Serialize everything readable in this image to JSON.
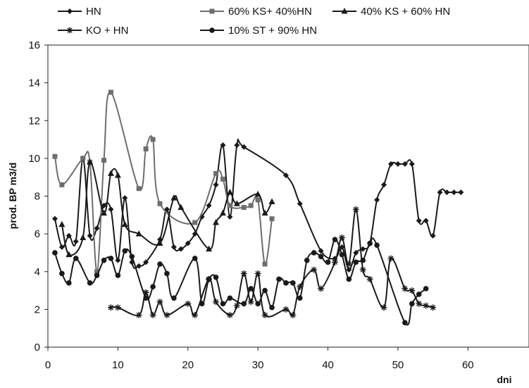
{
  "chart_data": {
    "type": "line",
    "xlabel": "dni",
    "ylabel": "prod. BP m3/d",
    "xlim": [
      0,
      65
    ],
    "ylim": [
      0,
      16
    ],
    "xticks": [
      0,
      10,
      20,
      30,
      40,
      50,
      60
    ],
    "yticks": [
      0,
      2,
      4,
      6,
      8,
      10,
      12,
      14,
      16
    ],
    "legend_position": "top",
    "grid": false,
    "series": [
      {
        "name": "HN",
        "marker": "diamond",
        "color": "#1a1a1a",
        "points": [
          [
            1,
            6.8
          ],
          [
            2,
            5.3
          ],
          [
            3,
            5.9
          ],
          [
            4,
            5.6
          ],
          [
            5,
            10.0
          ],
          [
            6,
            5.9
          ],
          [
            7,
            6.3
          ],
          [
            8,
            7.5
          ],
          [
            9,
            7.3
          ],
          [
            10,
            4.6
          ],
          [
            11,
            7.9
          ],
          [
            12,
            4.5
          ],
          [
            13,
            4.3
          ],
          [
            14,
            4.5
          ],
          [
            16,
            5.7
          ],
          [
            17,
            7.3
          ],
          [
            18,
            5.3
          ],
          [
            19,
            5.2
          ],
          [
            20,
            5.5
          ],
          [
            21,
            6.0
          ],
          [
            22,
            6.9
          ],
          [
            23,
            7.5
          ],
          [
            24,
            8.6
          ],
          [
            25,
            10.7
          ],
          [
            26,
            6.9
          ],
          [
            27,
            10.7
          ],
          [
            28,
            10.6
          ],
          [
            34,
            9.1
          ],
          [
            36,
            7.6
          ],
          [
            39,
            5.1
          ],
          [
            41,
            4.7
          ],
          [
            42,
            5.3
          ],
          [
            43,
            4.1
          ],
          [
            44,
            5.0
          ],
          [
            45,
            5.2
          ],
          [
            46,
            5.5
          ],
          [
            47,
            7.8
          ],
          [
            48,
            8.6
          ],
          [
            49,
            9.7
          ],
          [
            50,
            9.7
          ],
          [
            51,
            9.7
          ],
          [
            52,
            9.7
          ],
          [
            53,
            6.7
          ],
          [
            54,
            6.7
          ],
          [
            55,
            5.9
          ],
          [
            56,
            8.2
          ],
          [
            57,
            8.2
          ],
          [
            58,
            8.2
          ],
          [
            59,
            8.2
          ]
        ]
      },
      {
        "name": "60% KS+ 40%HN",
        "marker": "square",
        "color": "#6e6e6e",
        "points": [
          [
            1,
            10.1
          ],
          [
            2,
            8.6
          ],
          [
            5,
            10.0
          ],
          [
            6,
            9.8
          ],
          [
            7,
            4.0
          ],
          [
            8,
            9.9
          ],
          [
            9,
            13.5
          ],
          [
            13,
            8.4
          ],
          [
            14,
            10.5
          ],
          [
            15,
            11.0
          ],
          [
            16,
            7.6
          ],
          [
            21,
            6.6
          ],
          [
            24,
            9.2
          ],
          [
            25,
            8.9
          ],
          [
            26,
            7.5
          ],
          [
            28,
            7.4
          ],
          [
            29,
            7.5
          ],
          [
            30,
            7.8
          ],
          [
            31,
            4.4
          ],
          [
            32,
            6.8
          ]
        ]
      },
      {
        "name": "40% KS + 60% HN",
        "marker": "triangle",
        "color": "#1a1a1a",
        "points": [
          [
            2,
            6.5
          ],
          [
            3,
            4.9
          ],
          [
            5,
            5.8
          ],
          [
            6,
            9.8
          ],
          [
            8,
            7.1
          ],
          [
            9,
            9.2
          ],
          [
            10,
            9.1
          ],
          [
            11,
            6.5
          ],
          [
            13,
            6.0
          ],
          [
            16,
            5.5
          ],
          [
            18,
            7.9
          ],
          [
            19,
            7.4
          ],
          [
            23,
            5.2
          ],
          [
            24,
            6.6
          ],
          [
            25,
            7.1
          ],
          [
            26,
            8.2
          ],
          [
            27,
            7.6
          ],
          [
            30,
            8.1
          ],
          [
            31,
            7.1
          ],
          [
            32,
            7.7
          ]
        ]
      },
      {
        "name": "KO + HN",
        "marker": "asterisk",
        "color": "#1a1a1a",
        "points": [
          [
            9,
            2.1
          ],
          [
            10,
            2.1
          ],
          [
            13,
            1.7
          ],
          [
            14,
            2.9
          ],
          [
            15,
            1.7
          ],
          [
            16,
            2.4
          ],
          [
            17,
            1.7
          ],
          [
            20,
            2.3
          ],
          [
            21,
            1.7
          ],
          [
            23,
            3.6
          ],
          [
            24,
            2.4
          ],
          [
            26,
            1.7
          ],
          [
            27,
            2.2
          ],
          [
            28,
            3.9
          ],
          [
            29,
            2.4
          ],
          [
            30,
            3.9
          ],
          [
            31,
            1.7
          ],
          [
            34,
            2.0
          ],
          [
            35,
            1.7
          ],
          [
            36,
            3.2
          ],
          [
            38,
            4.1
          ],
          [
            39,
            3.1
          ],
          [
            41,
            4.5
          ],
          [
            42,
            5.8
          ],
          [
            43,
            4.4
          ],
          [
            44,
            7.3
          ],
          [
            45,
            4.1
          ],
          [
            46,
            3.6
          ],
          [
            48,
            2.1
          ],
          [
            49,
            4.7
          ],
          [
            51,
            3.1
          ],
          [
            52,
            3.0
          ],
          [
            53,
            2.3
          ],
          [
            54,
            2.2
          ],
          [
            55,
            2.1
          ]
        ]
      },
      {
        "name": "10% ST + 90% HN",
        "marker": "circle",
        "color": "#1a1a1a",
        "points": [
          [
            1,
            5.0
          ],
          [
            2,
            3.9
          ],
          [
            3,
            3.4
          ],
          [
            4,
            4.7
          ],
          [
            6,
            3.4
          ],
          [
            7,
            3.8
          ],
          [
            8,
            4.6
          ],
          [
            9,
            4.7
          ],
          [
            10,
            3.8
          ],
          [
            11,
            5.1
          ],
          [
            12,
            4.8
          ],
          [
            14,
            2.6
          ],
          [
            15,
            3.2
          ],
          [
            16,
            4.4
          ],
          [
            17,
            3.9
          ],
          [
            18,
            2.6
          ],
          [
            21,
            4.7
          ],
          [
            22,
            2.3
          ],
          [
            23,
            3.6
          ],
          [
            24,
            3.7
          ],
          [
            25,
            2.3
          ],
          [
            26,
            2.6
          ],
          [
            28,
            2.3
          ],
          [
            29,
            3.1
          ],
          [
            30,
            2.3
          ],
          [
            31,
            3.0
          ],
          [
            32,
            2.1
          ],
          [
            33,
            3.6
          ],
          [
            34,
            3.4
          ],
          [
            35,
            3.4
          ],
          [
            36,
            2.6
          ],
          [
            37,
            4.6
          ],
          [
            38,
            5.0
          ],
          [
            39,
            4.8
          ],
          [
            40,
            4.5
          ],
          [
            41,
            5.7
          ],
          [
            42,
            4.9
          ],
          [
            43,
            3.6
          ],
          [
            44,
            4.5
          ],
          [
            45,
            4.6
          ],
          [
            46,
            5.5
          ],
          [
            47,
            5.4
          ],
          [
            51,
            1.3
          ],
          [
            52,
            2.3
          ],
          [
            53,
            2.8
          ],
          [
            54,
            3.1
          ]
        ]
      }
    ]
  }
}
